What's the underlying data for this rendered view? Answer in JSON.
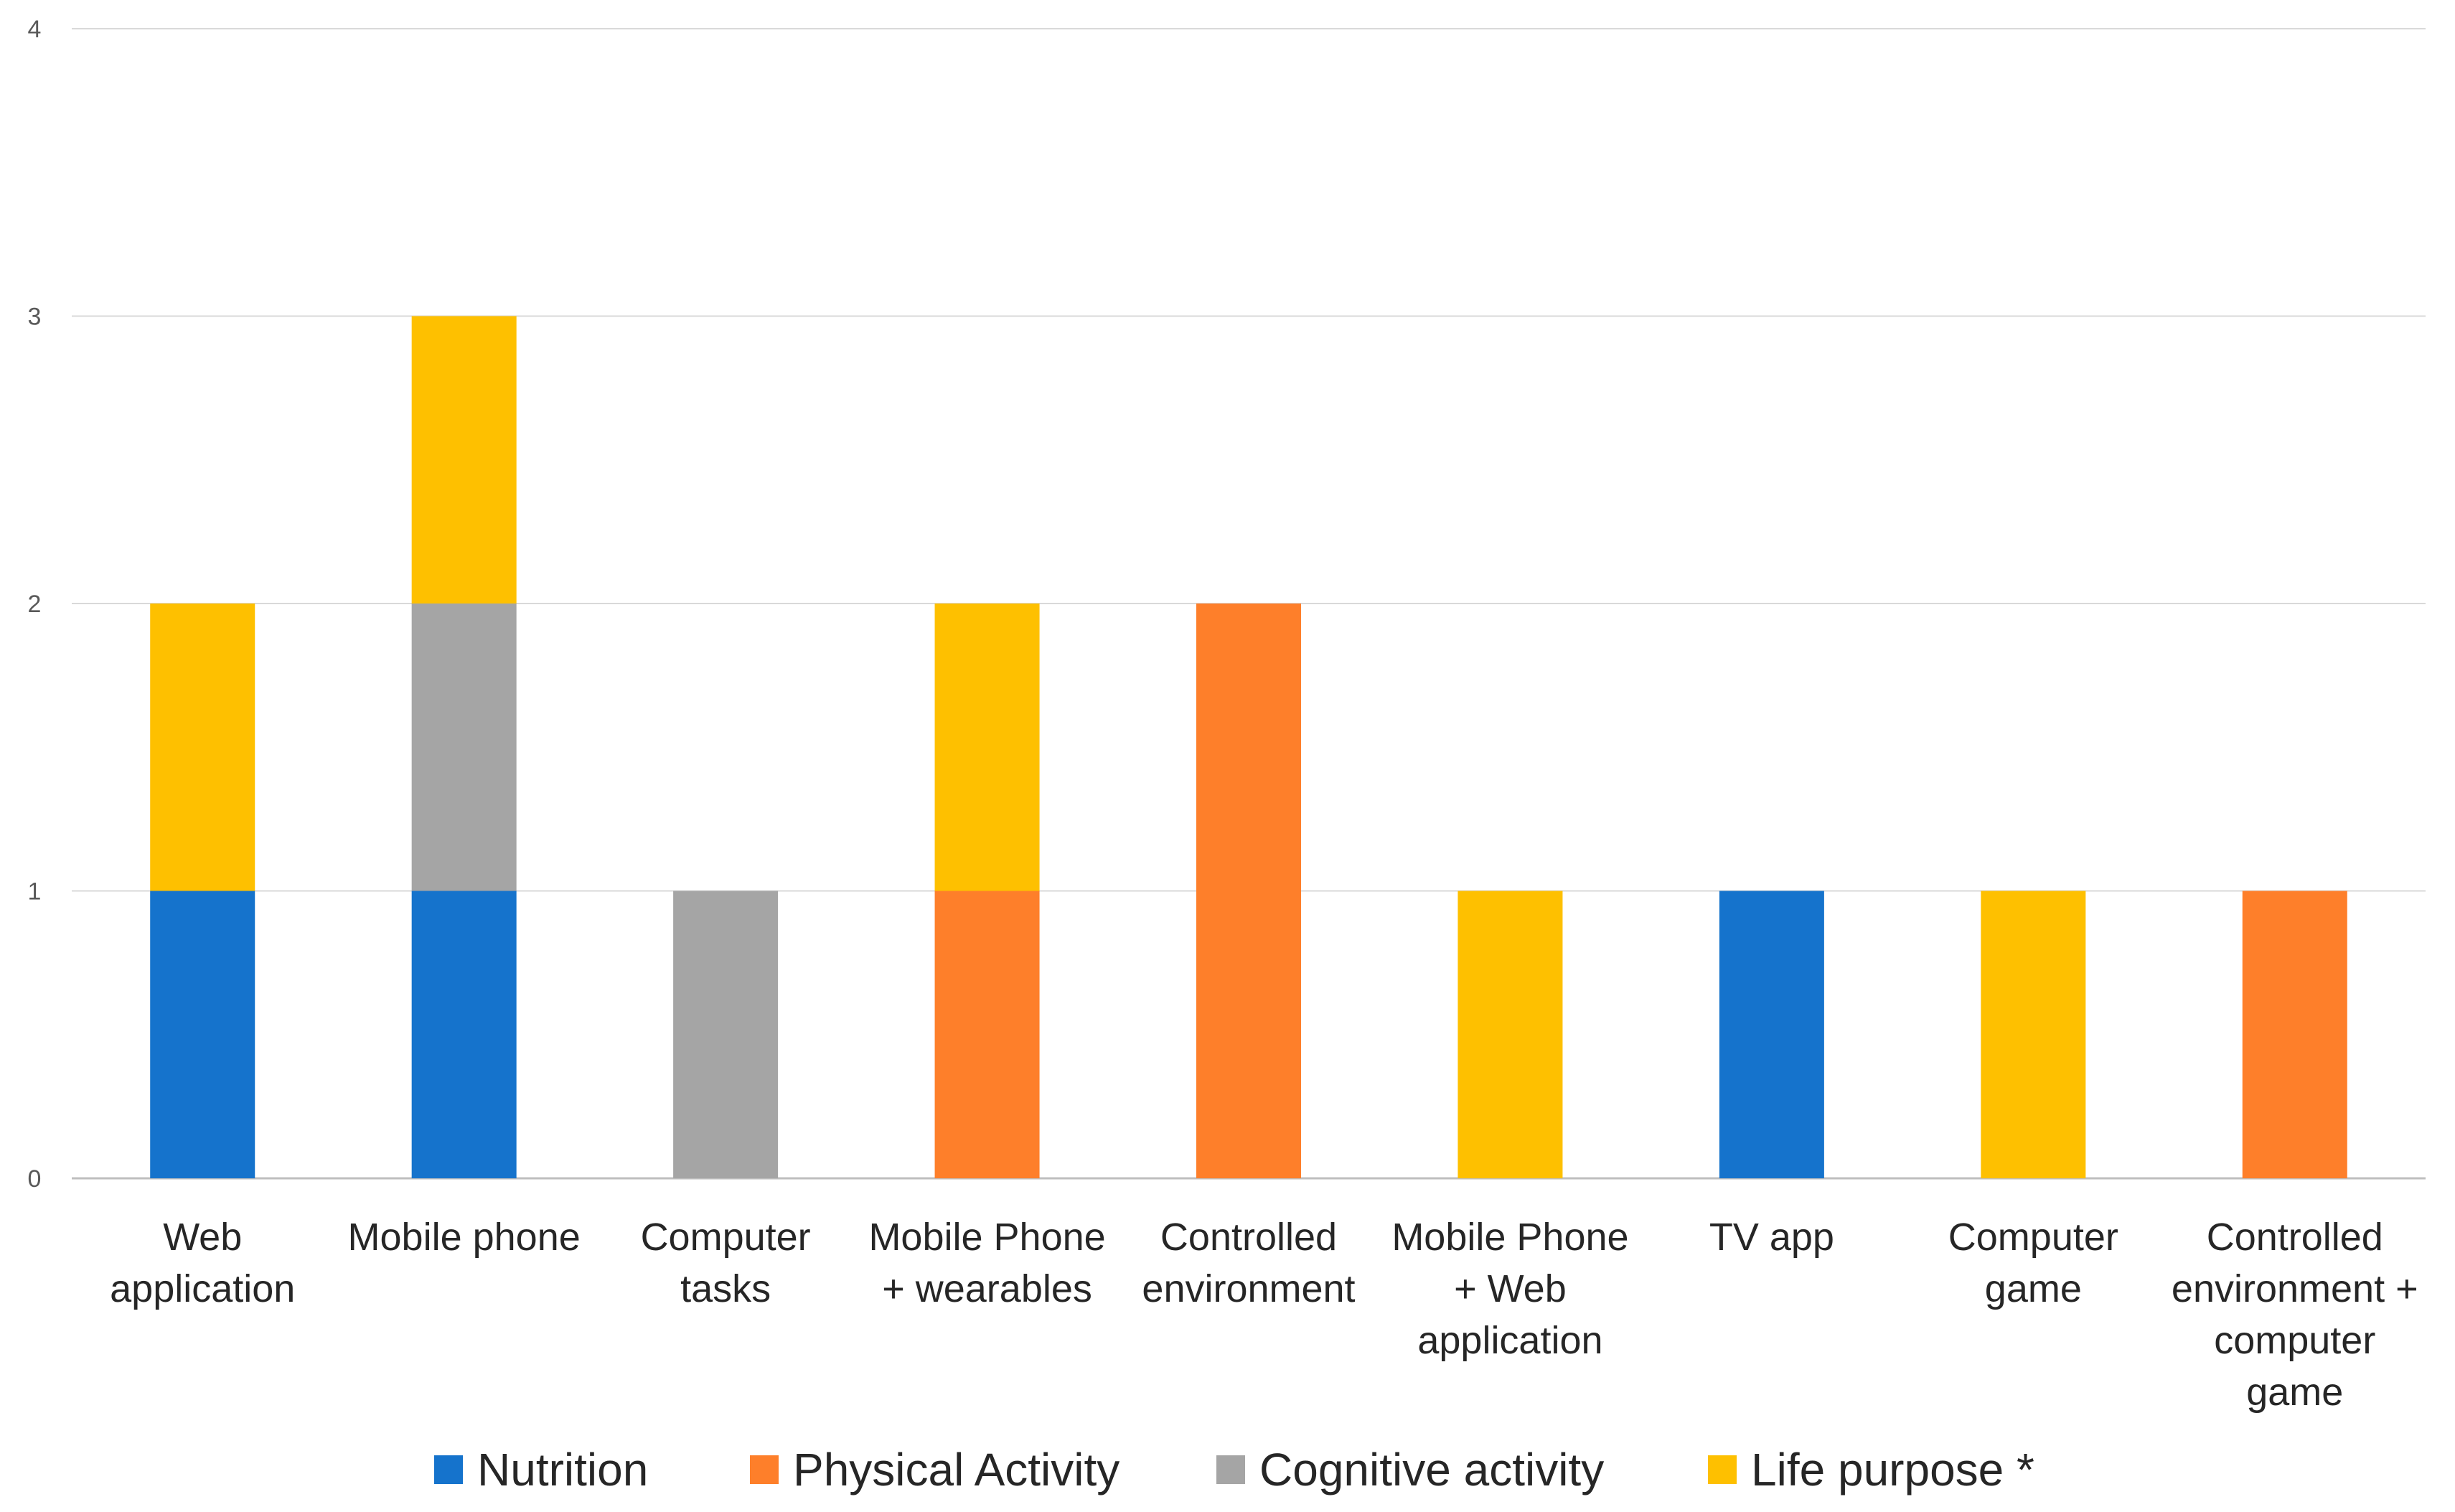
{
  "chart_data": {
    "type": "bar",
    "stacked": true,
    "title": "",
    "xlabel": "",
    "ylabel": "",
    "ylim": [
      0,
      4
    ],
    "yticks": [
      0,
      1,
      2,
      3,
      4
    ],
    "grid": true,
    "legend_position": "bottom",
    "categories": [
      [
        "Web",
        "application"
      ],
      [
        "Mobile phone"
      ],
      [
        "Computer",
        "tasks"
      ],
      [
        "Mobile Phone",
        "+ wearables"
      ],
      [
        "Controlled",
        "environment"
      ],
      [
        "Mobile Phone",
        "+ Web",
        "application"
      ],
      [
        "TV app"
      ],
      [
        "Computer",
        "game"
      ],
      [
        "Controlled",
        "environment +",
        "computer",
        "game"
      ]
    ],
    "series": [
      {
        "name": "Nutrition",
        "color": "#1573cc",
        "values": [
          1,
          1,
          0,
          0,
          0,
          0,
          1,
          0,
          0
        ]
      },
      {
        "name": "Physical Activity",
        "color": "#fe7f2a",
        "values": [
          0,
          0,
          0,
          1,
          2,
          0,
          0,
          0,
          1
        ]
      },
      {
        "name": "Cognitive activity",
        "color": "#a5a5a5",
        "values": [
          0,
          1,
          1,
          0,
          0,
          0,
          0,
          0,
          0
        ]
      },
      {
        "name": "Life purpose *",
        "color": "#fec000",
        "values": [
          1,
          1,
          0,
          1,
          0,
          1,
          0,
          1,
          0
        ]
      }
    ]
  }
}
